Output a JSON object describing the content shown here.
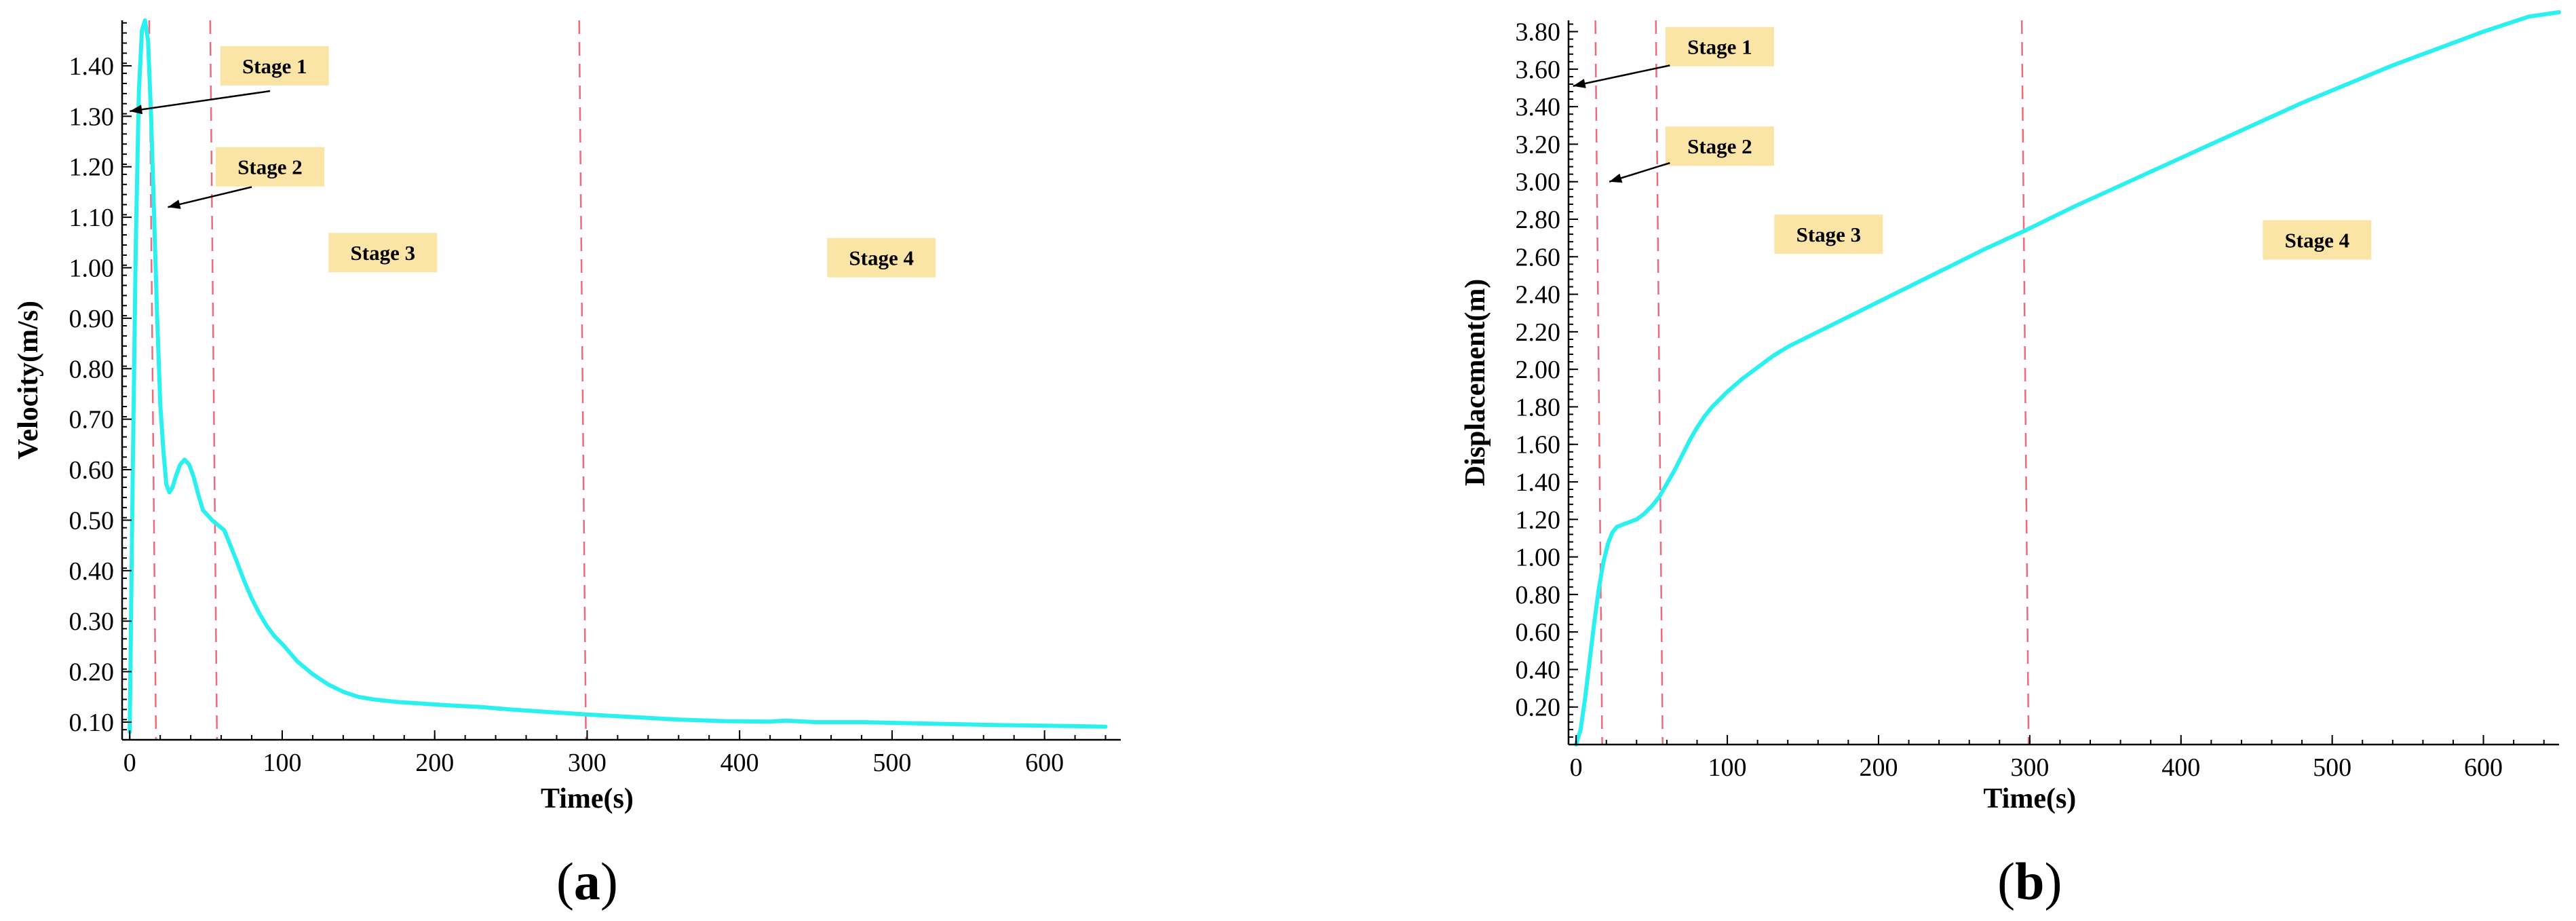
{
  "chart_data": [
    {
      "type": "line",
      "panel": "(a)",
      "xlabel": "Time(s)",
      "ylabel": "Velocity(m/s)",
      "xlim": [
        -5,
        650
      ],
      "ylim": [
        0.065,
        1.49
      ],
      "xticks": [
        0,
        100,
        200,
        300,
        400,
        500,
        600
      ],
      "xtick_labels": [
        "0",
        "100",
        "200",
        "300",
        "400",
        "500",
        "600"
      ],
      "yticks": [
        0.1,
        0.2,
        0.3,
        0.4,
        0.5,
        0.6,
        0.7,
        0.8,
        0.9,
        1.0,
        1.1,
        1.2,
        1.3,
        1.4
      ],
      "ytick_labels": [
        "0.10",
        "0.20",
        "0.30",
        "0.40",
        "0.50",
        "0.60",
        "0.70",
        "0.80",
        "0.90",
        "1.00",
        "1.10",
        "1.20",
        "1.30",
        "1.40"
      ],
      "grid": false,
      "series": [
        {
          "color": "#2BF0F0",
          "x": [
            0,
            2,
            4,
            6,
            8,
            10,
            12,
            14,
            16,
            18,
            20,
            22,
            24,
            26,
            28,
            30,
            33,
            36,
            39,
            42,
            45,
            48,
            51,
            54,
            58,
            62,
            66,
            70,
            75,
            80,
            85,
            90,
            95,
            100,
            110,
            120,
            130,
            140,
            150,
            160,
            175,
            190,
            210,
            230,
            250,
            275,
            300,
            330,
            360,
            390,
            420,
            430,
            450,
            480,
            510,
            540,
            570,
            600,
            620,
            640
          ],
          "y": [
            0.08,
            0.6,
            1.05,
            1.35,
            1.47,
            1.49,
            1.45,
            1.3,
            1.1,
            0.9,
            0.73,
            0.64,
            0.57,
            0.555,
            0.565,
            0.585,
            0.61,
            0.62,
            0.61,
            0.585,
            0.55,
            0.52,
            0.51,
            0.5,
            0.49,
            0.48,
            0.45,
            0.42,
            0.38,
            0.345,
            0.315,
            0.29,
            0.27,
            0.255,
            0.22,
            0.195,
            0.175,
            0.16,
            0.15,
            0.145,
            0.14,
            0.137,
            0.133,
            0.13,
            0.125,
            0.12,
            0.115,
            0.11,
            0.105,
            0.102,
            0.101,
            0.103,
            0.1,
            0.1,
            0.098,
            0.096,
            0.094,
            0.093,
            0.092,
            0.091
          ]
        }
      ],
      "dividers_x": [
        15,
        55,
        297
      ],
      "annotations": [
        {
          "label": "Stage 1",
          "x": 95,
          "y": 1.4,
          "arrow_from": [
            92,
            1.35
          ],
          "arrow_to": [
            0,
            1.31
          ]
        },
        {
          "label": "Stage 2",
          "x": 92,
          "y": 1.2,
          "arrow_from": [
            80,
            1.16
          ],
          "arrow_to": [
            25,
            1.12
          ]
        },
        {
          "label": "Stage 3",
          "x": 166,
          "y": 1.03
        },
        {
          "label": "Stage 4",
          "x": 493,
          "y": 1.02
        }
      ]
    },
    {
      "type": "line",
      "panel": "(b)",
      "xlabel": "Time(s)",
      "ylabel": "Displacement(m)",
      "xlim": [
        -5,
        650
      ],
      "ylim": [
        0,
        3.86
      ],
      "xticks": [
        0,
        100,
        200,
        300,
        400,
        500,
        600
      ],
      "xtick_labels": [
        "0",
        "100",
        "200",
        "300",
        "400",
        "500",
        "600"
      ],
      "yticks": [
        0.2,
        0.4,
        0.6,
        0.8,
        1.0,
        1.2,
        1.4,
        1.6,
        1.8,
        2.0,
        2.2,
        2.4,
        2.6,
        2.8,
        3.0,
        3.2,
        3.4,
        3.6,
        3.8
      ],
      "ytick_labels": [
        "0.20",
        "0.40",
        "0.60",
        "0.80",
        "1.00",
        "1.20",
        "1.40",
        "1.60",
        "1.80",
        "2.00",
        "2.20",
        "2.40",
        "2.60",
        "2.80",
        "3.00",
        "3.20",
        "3.40",
        "3.60",
        "3.80"
      ],
      "grid": false,
      "series": [
        {
          "color": "#2BF0F0",
          "x": [
            0,
            3,
            6,
            9,
            12,
            15,
            18,
            21,
            24,
            27,
            30,
            35,
            40,
            45,
            50,
            55,
            60,
            65,
            70,
            75,
            80,
            85,
            90,
            100,
            110,
            120,
            130,
            140,
            150,
            170,
            190,
            210,
            230,
            250,
            270,
            297,
            330,
            360,
            390,
            420,
            450,
            480,
            510,
            540,
            570,
            600,
            630,
            650
          ],
          "y": [
            0.0,
            0.08,
            0.25,
            0.45,
            0.65,
            0.83,
            0.97,
            1.07,
            1.13,
            1.16,
            1.17,
            1.185,
            1.2,
            1.23,
            1.27,
            1.32,
            1.39,
            1.46,
            1.54,
            1.62,
            1.69,
            1.75,
            1.8,
            1.88,
            1.95,
            2.01,
            2.07,
            2.12,
            2.16,
            2.24,
            2.32,
            2.4,
            2.48,
            2.56,
            2.64,
            2.74,
            2.87,
            2.98,
            3.09,
            3.2,
            3.31,
            3.42,
            3.52,
            3.62,
            3.71,
            3.8,
            3.88,
            3.94
          ]
        }
      ],
      "dividers_x": [
        15,
        55,
        297
      ],
      "annotations": [
        {
          "label": "Stage 1",
          "x": 95,
          "y": 3.72,
          "arrow_from": [
            62,
            3.62
          ],
          "arrow_to": [
            -2,
            3.51
          ]
        },
        {
          "label": "Stage 2",
          "x": 95,
          "y": 3.19,
          "arrow_from": [
            62,
            3.1
          ],
          "arrow_to": [
            22,
            3.0
          ]
        },
        {
          "label": "Stage 3",
          "x": 167,
          "y": 2.72
        },
        {
          "label": "Stage 4",
          "x": 490,
          "y": 2.69
        }
      ]
    }
  ]
}
